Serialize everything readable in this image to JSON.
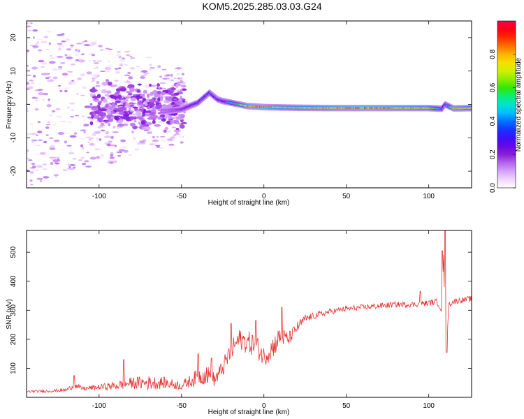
{
  "title": "KOM5.2025.285.03.03.G24",
  "colors": {
    "snr_line": "#e83030",
    "frame": "#000000",
    "colormap": [
      "#ffffff",
      "#e9c8ff",
      "#c07cf2",
      "#8a1fd8",
      "#5b00ee",
      "#1d20ff",
      "#0075ff",
      "#00d8ff",
      "#00ef9a",
      "#31e800",
      "#a8f000",
      "#f4ef00",
      "#ffb300",
      "#ff5a00",
      "#ff0000",
      "#f4004c"
    ]
  },
  "chart_data": [
    {
      "type": "heatmap",
      "name": "spectrogram",
      "xlabel": "Height of straight line (km)",
      "ylabel": "Frequency (Hz)",
      "xlim": [
        -144,
        126
      ],
      "ylim": [
        -25,
        25
      ],
      "xticks": [
        -100,
        -50,
        0,
        50,
        100
      ],
      "xtick_labels": [
        "-100",
        "-50",
        "0",
        "50",
        "100"
      ],
      "yticks": [
        -20,
        -10,
        0,
        10,
        20
      ],
      "ytick_labels": [
        "-20",
        "-10",
        "0",
        "10",
        "20"
      ],
      "colorbar": {
        "label": "Normalized spectral amplitude",
        "range": [
          0,
          1
        ],
        "ticks": [
          0,
          0.2,
          0.4,
          0.6,
          0.8
        ],
        "tick_labels": [
          "0.0",
          "0.2",
          "0.4",
          "0.6",
          "0.8"
        ]
      },
      "ridge": {
        "description": "dominant frequency trace vs height",
        "x": [
          -60,
          -50,
          -40,
          -33,
          -28,
          -25,
          -20,
          -10,
          0,
          10,
          20,
          40,
          60,
          80,
          100,
          108,
          110,
          115,
          126
        ],
        "freq": [
          -2,
          -1.5,
          0.5,
          3.5,
          1.5,
          1,
          0.5,
          -0.5,
          -0.8,
          -0.9,
          -1,
          -1.1,
          -1.1,
          -1.1,
          -1.1,
          -1.3,
          0,
          -1.2,
          -1.1
        ],
        "amplitude": [
          0.12,
          0.2,
          0.35,
          0.35,
          0.3,
          0.3,
          0.5,
          0.8,
          0.85,
          0.75,
          0.75,
          0.8,
          0.85,
          0.8,
          0.75,
          0.4,
          0.3,
          0.8,
          0.7
        ]
      },
      "noise_region": {
        "x_range": [
          -144,
          -60
        ],
        "freq_range": [
          -25,
          25
        ],
        "amplitude_range": [
          0,
          0.15
        ]
      }
    },
    {
      "type": "line",
      "name": "snr",
      "xlabel": "Height of straight line (km)",
      "ylabel": "SNR (v/v)",
      "xlim": [
        -144,
        126
      ],
      "ylim": [
        0,
        575
      ],
      "xticks": [
        -100,
        -50,
        0,
        50,
        100
      ],
      "xtick_labels": [
        "-100",
        "-50",
        "0",
        "50",
        "100"
      ],
      "yticks": [
        100,
        200,
        300,
        400,
        500
      ],
      "ytick_labels": [
        "100",
        "200",
        "300",
        "400",
        "500"
      ],
      "series": [
        {
          "name": "SNR",
          "trend_x": [
            -144,
            -130,
            -120,
            -115,
            -110,
            -100,
            -90,
            -80,
            -70,
            -60,
            -50,
            -40,
            -35,
            -30,
            -25,
            -20,
            -15,
            -10,
            -5,
            0,
            5,
            10,
            15,
            20,
            25,
            30,
            40,
            50,
            60,
            70,
            80,
            90,
            100,
            105,
            108,
            109,
            110,
            111,
            112,
            115,
            120,
            126
          ],
          "trend_y": [
            20,
            22,
            25,
            40,
            30,
            35,
            40,
            50,
            50,
            50,
            40,
            70,
            80,
            60,
            100,
            160,
            200,
            190,
            180,
            140,
            170,
            210,
            200,
            240,
            270,
            280,
            295,
            305,
            310,
            315,
            320,
            320,
            325,
            330,
            300,
            500,
            180,
            150,
            320,
            330,
            335,
            340
          ],
          "noise_amplitude": [
            4,
            5,
            6,
            10,
            8,
            10,
            15,
            20,
            25,
            20,
            15,
            30,
            35,
            25,
            30,
            40,
            35,
            40,
            40,
            35,
            40,
            35,
            25,
            20,
            15,
            12,
            10,
            10,
            10,
            10,
            10,
            10,
            10,
            10,
            10,
            10,
            10,
            10,
            10,
            10,
            10,
            10
          ],
          "spikes": [
            {
              "x": -115,
              "y": 75
            },
            {
              "x": -85,
              "y": 130
            },
            {
              "x": -40,
              "y": 150
            },
            {
              "x": -32,
              "y": 135
            },
            {
              "x": -20,
              "y": 255
            },
            {
              "x": -5,
              "y": 265
            },
            {
              "x": 11,
              "y": 310
            },
            {
              "x": 95,
              "y": 365
            },
            {
              "x": 108,
              "y": 505
            },
            {
              "x": 110,
              "y": 575
            },
            {
              "x": 111,
              "y": 155
            }
          ]
        }
      ]
    }
  ]
}
